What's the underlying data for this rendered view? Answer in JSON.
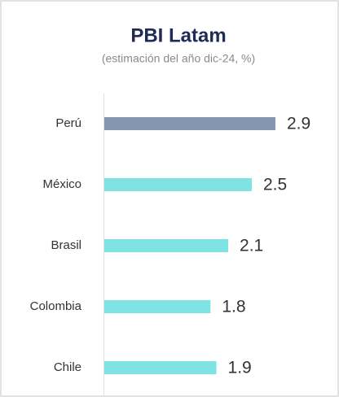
{
  "chart_data": {
    "type": "bar",
    "orientation": "horizontal",
    "title": "PBI Latam",
    "subtitle": "(estimación del año dic-24, %)",
    "categories": [
      "Perú",
      "México",
      "Brasil",
      "Colombia",
      "Chile"
    ],
    "values": [
      2.9,
      2.5,
      2.1,
      1.8,
      1.9
    ],
    "colors": [
      "#8497b0",
      "#7fe3e3",
      "#7fe3e3",
      "#7fe3e3",
      "#7fe3e3"
    ]
  }
}
